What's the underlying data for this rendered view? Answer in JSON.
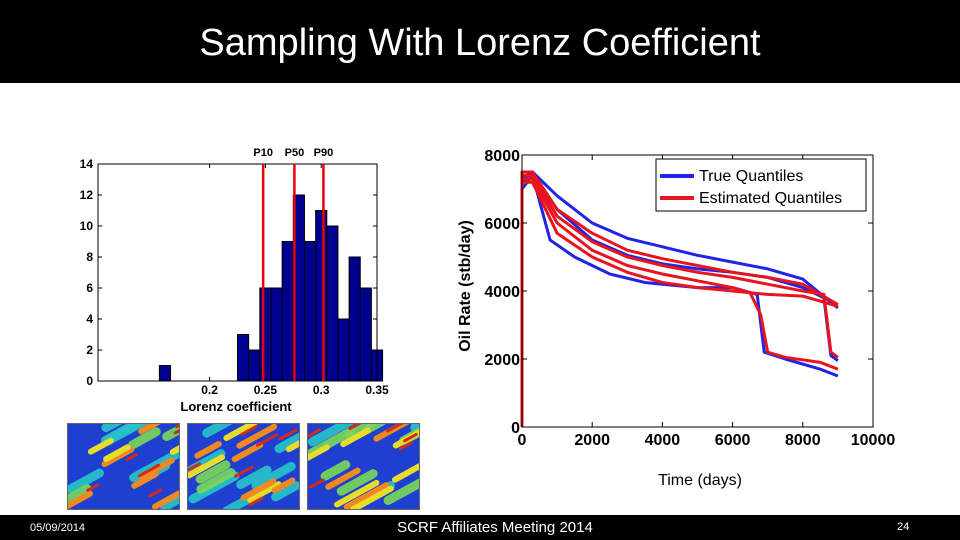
{
  "slide": {
    "title": "Sampling With Lorenz Coefficient",
    "footer_date": "05/09/2014",
    "footer_center": "SCRF Affiliates Meeting 2014",
    "page_number": "24"
  },
  "colors": {
    "bar_fill": "#00008f",
    "percentile_line": "#e8000a",
    "true_line": "#1f24e6",
    "estimated_line": "#e8141e"
  },
  "thumbnails": [
    {
      "name": "realization-1"
    },
    {
      "name": "realization-2"
    },
    {
      "name": "realization-3"
    }
  ],
  "chart_data": [
    {
      "type": "bar",
      "title": "",
      "xlabel": "Lorenz coefficient",
      "ylabel": "",
      "xlim": [
        0.1,
        0.35
      ],
      "ylim": [
        0,
        14
      ],
      "xticks": [
        "0.2",
        "0.25",
        "0.3",
        "0.35"
      ],
      "yticks": [
        "0",
        "2",
        "4",
        "6",
        "8",
        "10",
        "12",
        "14"
      ],
      "bin_width": 0.01,
      "bins": [
        {
          "x0": 0.155,
          "count": 1
        },
        {
          "x0": 0.225,
          "count": 3
        },
        {
          "x0": 0.235,
          "count": 2
        },
        {
          "x0": 0.245,
          "count": 6
        },
        {
          "x0": 0.255,
          "count": 6
        },
        {
          "x0": 0.265,
          "count": 9
        },
        {
          "x0": 0.275,
          "count": 12
        },
        {
          "x0": 0.285,
          "count": 9
        },
        {
          "x0": 0.295,
          "count": 11
        },
        {
          "x0": 0.305,
          "count": 10
        },
        {
          "x0": 0.315,
          "count": 4
        },
        {
          "x0": 0.325,
          "count": 8
        },
        {
          "x0": 0.335,
          "count": 6
        },
        {
          "x0": 0.345,
          "count": 2
        }
      ],
      "percentiles": [
        {
          "label": "P10",
          "x": 0.248
        },
        {
          "label": "P50",
          "x": 0.276
        },
        {
          "label": "P90",
          "x": 0.302
        }
      ],
      "grid": false
    },
    {
      "type": "line",
      "title": "",
      "xlabel": "Time (days)",
      "ylabel": "Oil Rate (stb/day)",
      "xlim": [
        0,
        10000
      ],
      "ylim": [
        0,
        8000
      ],
      "xticks": [
        "0",
        "2000",
        "4000",
        "6000",
        "8000",
        "10000"
      ],
      "yticks": [
        "0",
        "2000",
        "4000",
        "6000",
        "8000"
      ],
      "legend_position": "top-right",
      "series": [
        {
          "name": "True Quantiles",
          "color": "#1f24e6",
          "curves": [
            {
              "points": [
                [
                  0,
                  0
                ],
                [
                  0,
                  7300
                ],
                [
                  300,
                  7500
                ],
                [
                  1000,
                  6800
                ],
                [
                  2000,
                  6000
                ],
                [
                  3000,
                  5550
                ],
                [
                  4000,
                  5300
                ],
                [
                  5000,
                  5050
                ],
                [
                  6000,
                  4850
                ],
                [
                  7000,
                  4650
                ],
                [
                  8000,
                  4350
                ],
                [
                  9000,
                  3500
                ]
              ]
            },
            {
              "points": [
                [
                  0,
                  0
                ],
                [
                  0,
                  7200
                ],
                [
                  300,
                  7450
                ],
                [
                  1000,
                  6400
                ],
                [
                  2000,
                  5500
                ],
                [
                  3000,
                  5050
                ],
                [
                  4000,
                  4800
                ],
                [
                  5000,
                  4650
                ],
                [
                  6000,
                  4550
                ],
                [
                  7000,
                  4400
                ],
                [
                  8000,
                  4100
                ],
                [
                  8600,
                  3800
                ],
                [
                  8800,
                  2100
                ],
                [
                  9000,
                  1950
                ]
              ]
            },
            {
              "points": [
                [
                  0,
                  0
                ],
                [
                  0,
                  7000
                ],
                [
                  300,
                  7400
                ],
                [
                  800,
                  5500
                ],
                [
                  1500,
                  5000
                ],
                [
                  2500,
                  4500
                ],
                [
                  3500,
                  4250
                ],
                [
                  5000,
                  4100
                ],
                [
                  6000,
                  4100
                ],
                [
                  6700,
                  3900
                ],
                [
                  6900,
                  2200
                ],
                [
                  7500,
                  2000
                ],
                [
                  8500,
                  1700
                ],
                [
                  9000,
                  1500
                ]
              ]
            }
          ]
        },
        {
          "name": "Estimated Quantiles",
          "color": "#e8141e",
          "curves": [
            {
              "points": [
                [
                  0,
                  0
                ],
                [
                  0,
                  7500
                ],
                [
                  300,
                  7500
                ],
                [
                  1000,
                  6400
                ],
                [
                  2000,
                  5700
                ],
                [
                  3000,
                  5200
                ],
                [
                  4000,
                  4950
                ],
                [
                  5000,
                  4750
                ],
                [
                  6000,
                  4550
                ],
                [
                  7000,
                  4400
                ],
                [
                  8000,
                  4200
                ],
                [
                  9000,
                  3600
                ]
              ]
            },
            {
              "points": [
                [
                  0,
                  0
                ],
                [
                  0,
                  7400
                ],
                [
                  300,
                  7400
                ],
                [
                  1000,
                  6200
                ],
                [
                  2000,
                  5450
                ],
                [
                  3000,
                  5000
                ],
                [
                  4000,
                  4750
                ],
                [
                  5000,
                  4550
                ],
                [
                  6000,
                  4400
                ],
                [
                  7000,
                  4200
                ],
                [
                  8000,
                  4000
                ],
                [
                  8600,
                  3900
                ],
                [
                  8800,
                  2200
                ],
                [
                  9000,
                  2050
                ]
              ]
            },
            {
              "points": [
                [
                  0,
                  0
                ],
                [
                  0,
                  7300
                ],
                [
                  300,
                  7300
                ],
                [
                  1000,
                  6000
                ],
                [
                  2000,
                  5200
                ],
                [
                  3000,
                  4750
                ],
                [
                  4000,
                  4500
                ],
                [
                  5000,
                  4300
                ],
                [
                  6000,
                  4100
                ],
                [
                  6500,
                  3950
                ],
                [
                  6800,
                  3300
                ],
                [
                  7000,
                  2200
                ],
                [
                  7500,
                  2050
                ],
                [
                  8500,
                  1900
                ],
                [
                  9000,
                  1700
                ]
              ]
            },
            {
              "points": [
                [
                  0,
                  0
                ],
                [
                  0,
                  7200
                ],
                [
                  300,
                  7200
                ],
                [
                  1000,
                  5700
                ],
                [
                  2000,
                  5000
                ],
                [
                  3000,
                  4550
                ],
                [
                  4000,
                  4250
                ],
                [
                  5000,
                  4100
                ],
                [
                  6000,
                  4000
                ],
                [
                  7000,
                  3900
                ],
                [
                  8000,
                  3850
                ],
                [
                  9000,
                  3550
                ]
              ]
            }
          ]
        }
      ],
      "grid": false
    }
  ]
}
